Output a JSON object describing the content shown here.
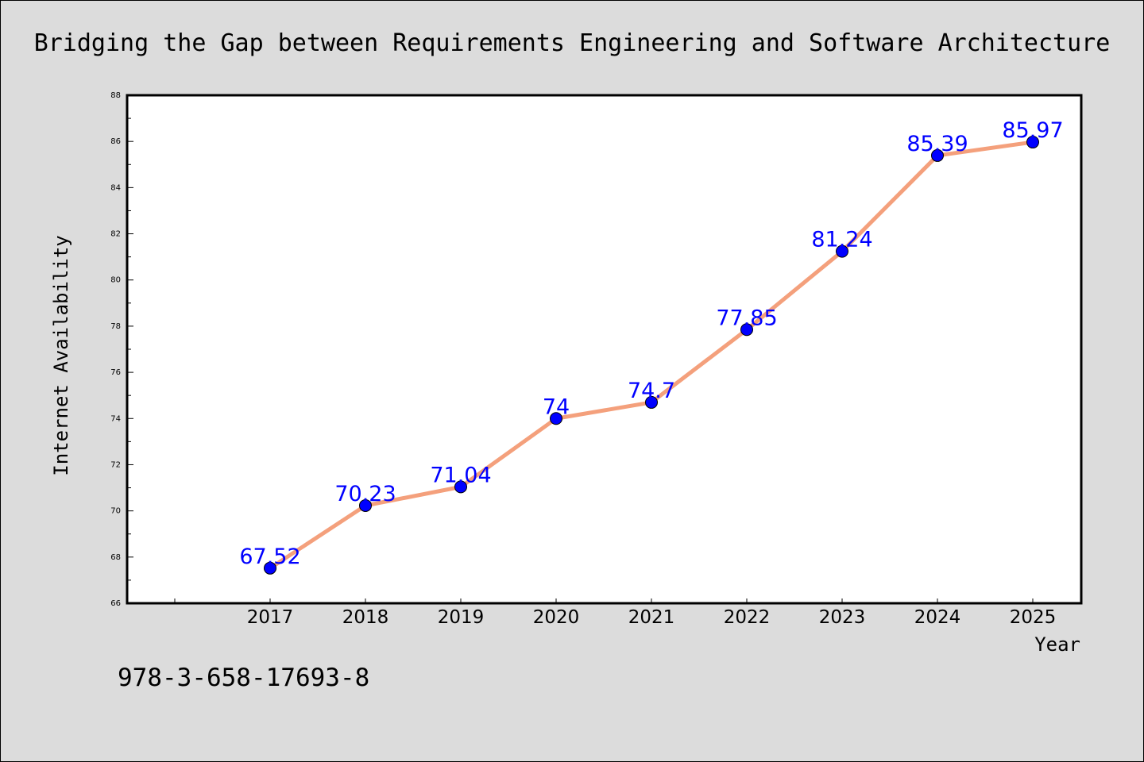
{
  "chart_data": {
    "type": "line",
    "title": "Bridging the Gap between Requirements Engineering and Software Architecture",
    "xlabel": "Year",
    "ylabel": "Internet Availability",
    "categories": [
      "2017",
      "2018",
      "2019",
      "2020",
      "2021",
      "2022",
      "2023",
      "2024",
      "2025"
    ],
    "values": [
      67.52,
      70.23,
      71.04,
      74,
      74.7,
      77.85,
      81.24,
      85.39,
      85.97
    ],
    "data_labels": [
      "67.52",
      "70.23",
      "71.04",
      "74",
      "74.7",
      "77.85",
      "81.24",
      "85.39",
      "85.97"
    ],
    "ylim": [
      66,
      88
    ],
    "yticks": [
      "66",
      "68",
      "70",
      "72",
      "74",
      "76",
      "78",
      "80",
      "82",
      "84",
      "86",
      "88"
    ],
    "grid": false,
    "legend": "none",
    "colors": {
      "line": "#f4a07c",
      "marker": "#0000ff",
      "data_label": "#0000ff",
      "background": "#dcdcdc",
      "plot_area": "#ffffff"
    }
  },
  "footer": {
    "isbn": "978-3-658-17693-8"
  }
}
